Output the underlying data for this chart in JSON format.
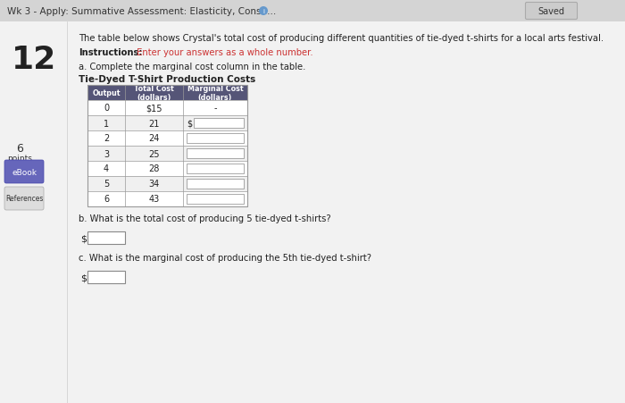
{
  "title_bar": "Wk 3 - Apply: Summative Assessment: Elasticity, Consu...",
  "saved_label": "Saved",
  "question_number": "12",
  "intro_text": "The table below shows Crystal's total cost of producing different quantities of tie-dyed t-shirts for a local arts festival.",
  "instructions_bold": "Instructions:",
  "instructions_red": " Enter your answers as a whole number.",
  "part_a": "a. Complete the marginal cost column in the table.",
  "table_title": "Tie-Dyed T-Shirt Production Costs",
  "col_headers": [
    "Output",
    "Total Cost\n(dollars)",
    "Marginal Cost\n(dollars)"
  ],
  "output_vals": [
    "0",
    "1",
    "2",
    "3",
    "4",
    "5",
    "6"
  ],
  "total_cost_vals": [
    "$15",
    "21",
    "24",
    "25",
    "28",
    "34",
    "43"
  ],
  "marginal_cost_row0": "-",
  "marginal_cost_row1_prefix": "$",
  "part_b": "b. What is the total cost of producing 5 tie-dyed t-shirts?",
  "part_c": "c. What is the marginal cost of producing the 5th tie-dyed t-shirt?",
  "bg_color": "#ebebeb",
  "topbar_color": "#d4d4d4",
  "white": "#ffffff",
  "header_bg": "#555577",
  "table_line_color": "#999999",
  "red_text": "#cc3333",
  "dark_text": "#222222",
  "sidebar_blue": "#6666bb"
}
